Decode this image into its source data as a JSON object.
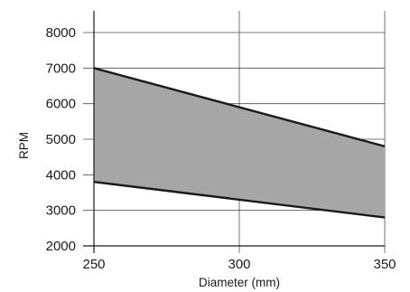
{
  "chart_data": {
    "type": "area",
    "title": "",
    "xlabel": "Diameter (mm)",
    "ylabel": "RPM",
    "xlim": [
      250,
      350
    ],
    "ylim": [
      2000,
      8500
    ],
    "x_ticks": [
      250,
      300,
      350
    ],
    "y_ticks": [
      2000,
      3000,
      4000,
      5000,
      6000,
      7000,
      8000
    ],
    "grid": true,
    "legend": "none",
    "fill_color": "#a6a6a6",
    "line_color": "#1a1a1a",
    "grid_color": "#4d4d4d",
    "series": [
      {
        "role": "upper",
        "x": [
          250,
          350
        ],
        "y": [
          7000,
          4800
        ]
      },
      {
        "role": "lower",
        "x": [
          250,
          350
        ],
        "y": [
          3800,
          2800
        ]
      }
    ]
  }
}
